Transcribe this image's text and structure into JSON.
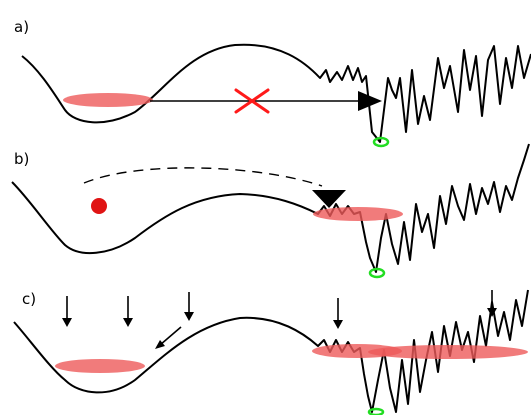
{
  "panels": [
    {
      "id": "a",
      "label": "a)"
    },
    {
      "id": "b",
      "label": "b)"
    },
    {
      "id": "c",
      "label": "c)"
    }
  ],
  "colors": {
    "curve": "#000000",
    "basin_highlight": "#ee5a5a",
    "blocked_mark": "#ff1a1a",
    "particle": "#e01414",
    "global_minimum_marker": "#22dd22"
  }
}
